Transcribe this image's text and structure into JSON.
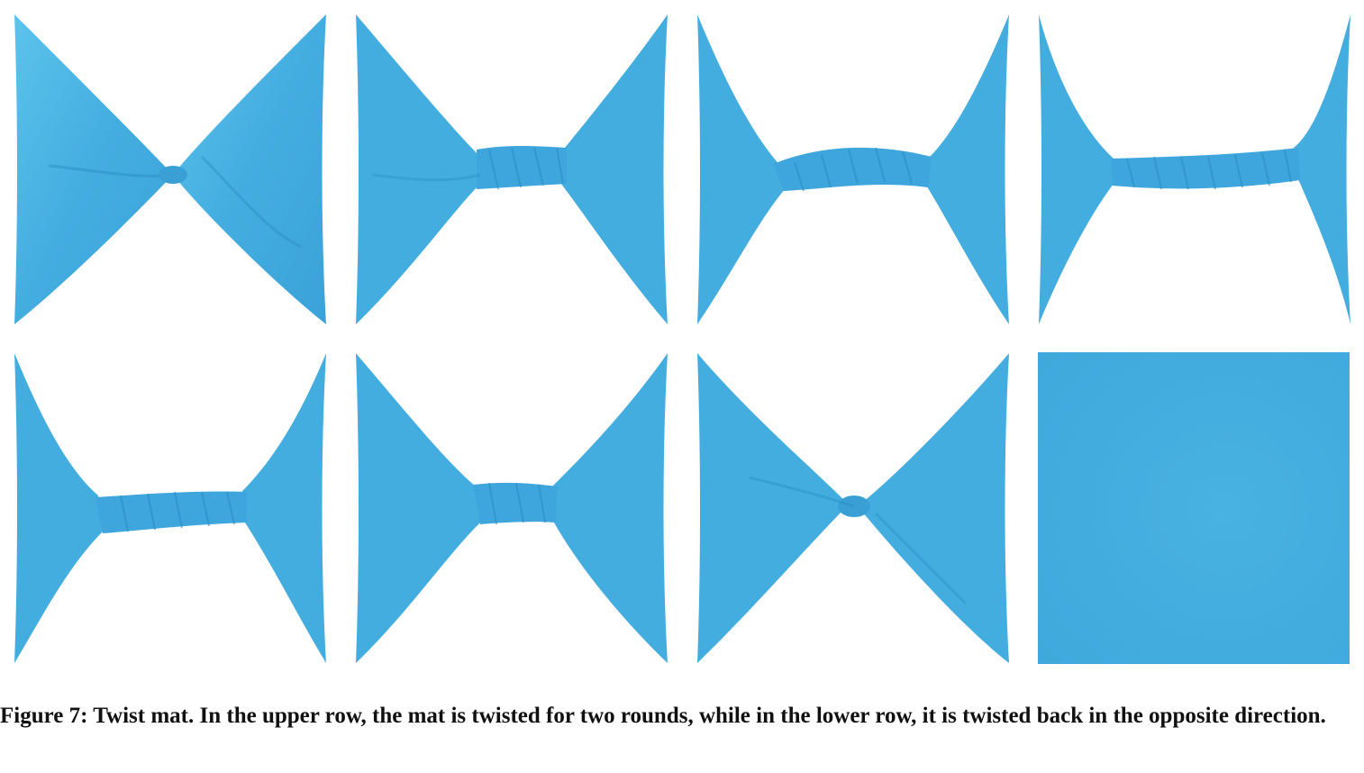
{
  "figure": {
    "caption": "Figure 7: Twist mat. In the upper row, the mat is twisted for two rounds, while in the lower row, it is twisted back in the opposite direction.",
    "colors": {
      "mat_base": "#44ade0",
      "mat_light": "#5cc3ec",
      "mat_shadow": "#2b8dc2",
      "background": "#ffffff"
    },
    "panels": [
      {
        "row": "upper",
        "index": 1,
        "state": "twisted-bowtie"
      },
      {
        "row": "upper",
        "index": 2,
        "state": "twisted-short-rope"
      },
      {
        "row": "upper",
        "index": 3,
        "state": "twisted-rope"
      },
      {
        "row": "upper",
        "index": 4,
        "state": "twisted-long-rope"
      },
      {
        "row": "lower",
        "index": 1,
        "state": "untwisting-rope"
      },
      {
        "row": "lower",
        "index": 2,
        "state": "untwisting-short-rope"
      },
      {
        "row": "lower",
        "index": 3,
        "state": "untwisting-bowtie"
      },
      {
        "row": "lower",
        "index": 4,
        "state": "flat-square"
      }
    ]
  }
}
